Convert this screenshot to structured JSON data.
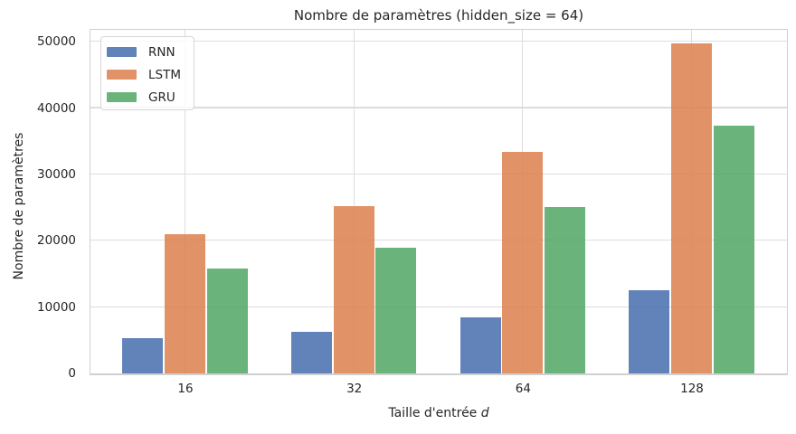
{
  "chart_data": {
    "type": "bar",
    "title": "Nombre de paramètres (hidden_size = 64)",
    "xlabel": {
      "text": "Taille d'entrée ",
      "math": "d"
    },
    "ylabel": "Nombre de paramètres",
    "categories": [
      "16",
      "32",
      "64",
      "128"
    ],
    "series": [
      {
        "name": "RNN",
        "color": "#4C72B0",
        "values": [
          5248,
          6272,
          8320,
          12416
        ]
      },
      {
        "name": "LSTM",
        "color": "#DD8452",
        "values": [
          20992,
          25088,
          33280,
          49664
        ]
      },
      {
        "name": "GRU",
        "color": "#55A868",
        "values": [
          15744,
          18816,
          24960,
          37248
        ]
      }
    ],
    "bar_alpha": 0.88,
    "ylim": [
      0,
      51800
    ],
    "yticks": [
      0,
      10000,
      20000,
      30000,
      40000,
      50000
    ],
    "grid": true,
    "legend_position": "upper left",
    "colors": {
      "background": "#ffffff",
      "text": "#262626",
      "grid": "#dddddd",
      "spine": "#d0d0d0"
    }
  }
}
